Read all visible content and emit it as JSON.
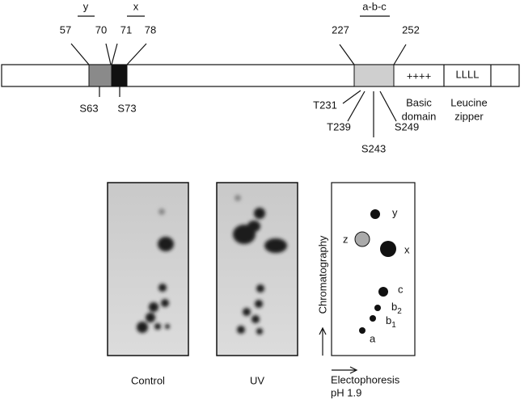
{
  "regions": [
    {
      "label": "y"
    },
    {
      "label": "x"
    },
    {
      "label": "a-b-c"
    }
  ],
  "residues": [
    "57",
    "70",
    "71",
    "78",
    "227",
    "252"
  ],
  "motifs": {
    "basic": "++++",
    "zipper": "LLLL"
  },
  "sites": [
    "S63",
    "S73",
    "T231",
    "T239",
    "S243",
    "S249"
  ],
  "domains": {
    "basic": [
      "Basic",
      "domain"
    ],
    "zipper": [
      "Leucine",
      "zipper"
    ]
  },
  "panels": [
    "Control",
    "UV"
  ],
  "map": {
    "y_axis": "Chromatography",
    "x_axis": [
      "Electophoresis",
      "pH 1.9"
    ],
    "spots": [
      {
        "label": "y"
      },
      {
        "label": "z"
      },
      {
        "label": "x"
      },
      {
        "label": "c"
      },
      {
        "label": "b",
        "sub": "2"
      },
      {
        "label": "b",
        "sub": "1"
      },
      {
        "label": "a"
      }
    ]
  }
}
